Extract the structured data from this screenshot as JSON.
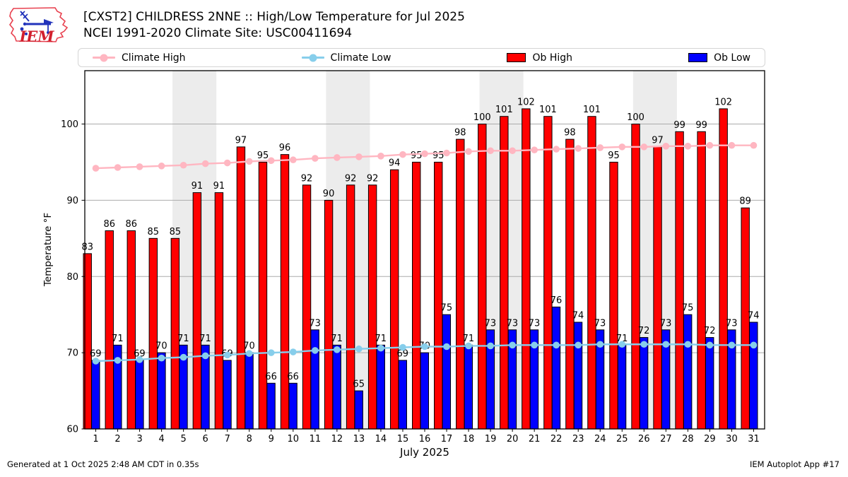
{
  "header": {
    "logo_text": "IEM"
  },
  "legend": {
    "items": [
      {
        "label": "Climate High",
        "type": "line-dot",
        "color": "#ffb6c1"
      },
      {
        "label": "Climate Low",
        "type": "line-dot",
        "color": "#87ceeb"
      },
      {
        "label": "Ob High",
        "type": "patch",
        "color": "#ff0000"
      },
      {
        "label": "Ob Low",
        "type": "patch",
        "color": "#0000ff"
      }
    ]
  },
  "footer": {
    "generated": "Generated at 1 Oct 2025 2:48 AM CDT in 0.35s",
    "app": "IEM Autoplot App #17"
  },
  "chart_data": {
    "type": "bar",
    "title": "[CXST2] CHILDRESS 2NNE :: High/Low Temperature for Jul 2025",
    "subtitle": "NCEI 1991-2020 Climate Site: USC00411694",
    "xlabel": "July 2025",
    "ylabel": "Temperature °F",
    "x": [
      1,
      2,
      3,
      4,
      5,
      6,
      7,
      8,
      9,
      10,
      11,
      12,
      13,
      14,
      15,
      16,
      17,
      18,
      19,
      20,
      21,
      22,
      23,
      24,
      25,
      26,
      27,
      28,
      29,
      30,
      31
    ],
    "ylim": [
      60,
      107
    ],
    "yticks": [
      60,
      70,
      80,
      90,
      100
    ],
    "grid": true,
    "legend_position": "top",
    "weekend_shading_days": [
      [
        5,
        6
      ],
      [
        12,
        13
      ],
      [
        19,
        20
      ],
      [
        26,
        27
      ]
    ],
    "colors": {
      "grid": "#ababab",
      "weekend_band": "#ececec",
      "frame": "#000000"
    },
    "series": [
      {
        "name": "Ob High",
        "type": "bar",
        "color": "#ff0000",
        "labeled": true,
        "values": [
          83,
          86,
          86,
          85,
          85,
          91,
          91,
          97,
          95,
          96,
          92,
          90,
          92,
          92,
          94,
          95,
          95,
          98,
          100,
          101,
          102,
          101,
          98,
          101,
          95,
          100,
          97,
          99,
          99,
          102,
          89
        ]
      },
      {
        "name": "Ob Low",
        "type": "bar",
        "color": "#0000ff",
        "labeled": true,
        "values": [
          69,
          71,
          69,
          70,
          71,
          71,
          69,
          70,
          66,
          66,
          73,
          71,
          65,
          71,
          69,
          70,
          75,
          71,
          73,
          73,
          73,
          76,
          74,
          73,
          71,
          72,
          73,
          75,
          72,
          73,
          74
        ]
      },
      {
        "name": "Climate High",
        "type": "line",
        "color": "#ffb6c1",
        "values": [
          94.2,
          94.3,
          94.4,
          94.5,
          94.6,
          94.8,
          94.9,
          95.1,
          95.2,
          95.3,
          95.5,
          95.6,
          95.7,
          95.8,
          96.0,
          96.1,
          96.2,
          96.4,
          96.5,
          96.5,
          96.6,
          96.7,
          96.8,
          96.9,
          97.0,
          97.0,
          97.1,
          97.1,
          97.2,
          97.2,
          97.2
        ]
      },
      {
        "name": "Climate Low",
        "type": "line",
        "color": "#87ceeb",
        "values": [
          68.9,
          69.0,
          69.1,
          69.3,
          69.4,
          69.6,
          69.7,
          69.9,
          70.0,
          70.1,
          70.3,
          70.4,
          70.5,
          70.6,
          70.7,
          70.8,
          70.8,
          70.9,
          70.9,
          71.0,
          71.0,
          71.0,
          71.0,
          71.1,
          71.1,
          71.1,
          71.1,
          71.1,
          71.0,
          71.0,
          71.0
        ]
      }
    ]
  }
}
